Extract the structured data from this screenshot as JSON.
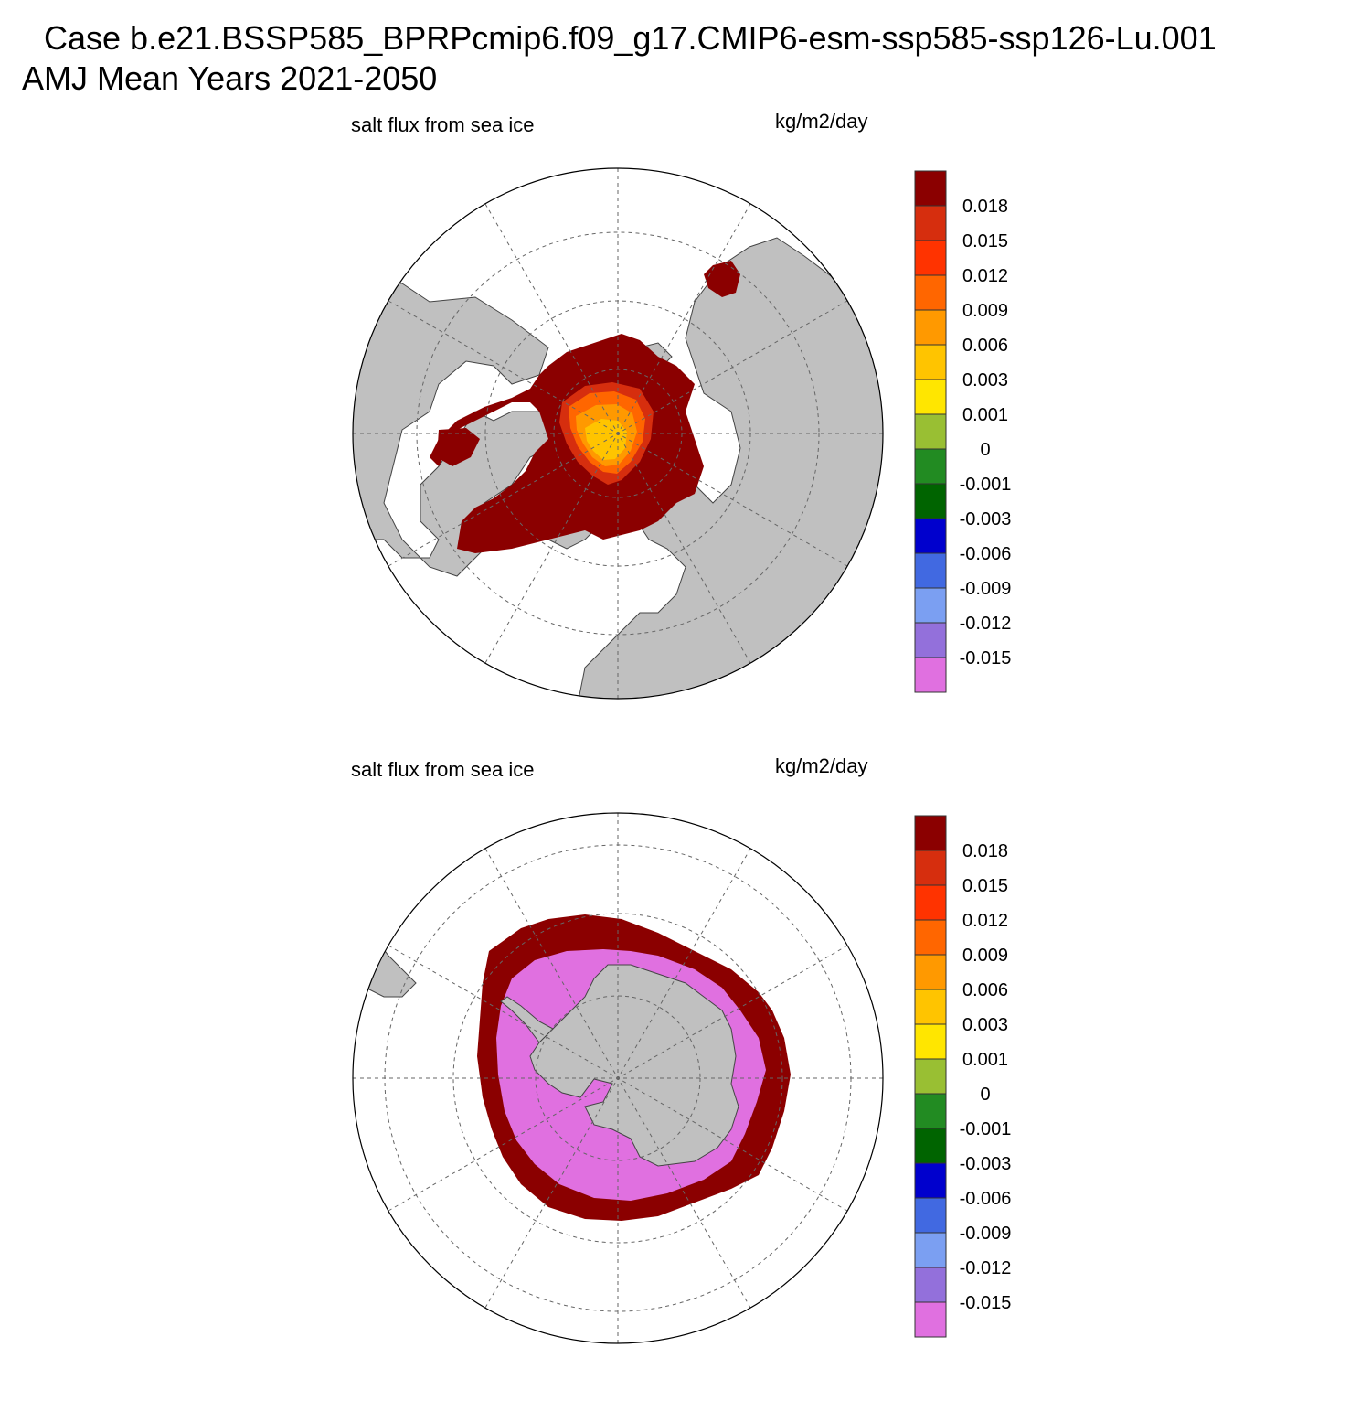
{
  "header": {
    "title_line1": "Case b.e21.BSSP585_BPRPcmip6.f09_g17.CMIP6-esm-ssp585-ssp126-Lu.001",
    "title_line2": "AMJ Mean   Years 2021-2050"
  },
  "panels": [
    {
      "id": "north",
      "title": "salt flux from sea ice",
      "units": "kg/m2/day",
      "hemisphere": "Northern Hemisphere"
    },
    {
      "id": "south",
      "title": "salt flux from sea ice",
      "units": "kg/m2/day",
      "hemisphere": "Southern Hemisphere"
    }
  ],
  "colorbar": {
    "labels": [
      "0.018",
      "0.015",
      "0.012",
      "0.009",
      "0.006",
      "0.003",
      "0.001",
      "0",
      "-0.001",
      "-0.003",
      "-0.006",
      "-0.009",
      "-0.012",
      "-0.015"
    ],
    "colors": [
      "#8b0000",
      "#d62e0e",
      "#ff3300",
      "#ff6600",
      "#ff9900",
      "#ffc400",
      "#ffe600",
      "#99bf33",
      "#228b22",
      "#006400",
      "#0000cd",
      "#4169e1",
      "#7b9ff2",
      "#9370db",
      "#e070e0"
    ]
  },
  "colors": {
    "land": "#c0c0c0",
    "high_flux": "#8b0000",
    "ocean": "#ffffff",
    "grid": "#666666"
  }
}
